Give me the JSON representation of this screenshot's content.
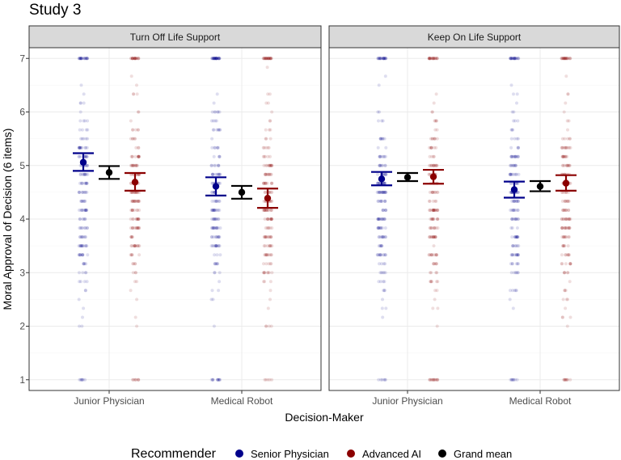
{
  "chart_data": {
    "type": "scatter",
    "title": "Study 3",
    "xlabel": "Decision-Maker",
    "ylabel": "Moral Approval of Decision (6 items)",
    "ylim": [
      0.8,
      7.2
    ],
    "yticks": [
      "1",
      "2",
      "3",
      "4",
      "5",
      "6",
      "7"
    ],
    "categories": [
      "Junior Physician",
      "Medical Robot"
    ],
    "grid": true,
    "legend": {
      "title": "Recommender",
      "position": "bottom",
      "entries": [
        {
          "name": "Senior Physician",
          "color": "#00008b"
        },
        {
          "name": "Advanced AI",
          "color": "#8b0000"
        },
        {
          "name": "Grand mean",
          "color": "#000000"
        }
      ]
    },
    "panels": [
      {
        "name": "Turn Off Life Support",
        "means": [
          {
            "category": "Junior Physician",
            "series": "Senior Physician",
            "mean": 5.06,
            "lower": 4.9,
            "upper": 5.23
          },
          {
            "category": "Junior Physician",
            "series": "Grand mean",
            "mean": 4.87,
            "lower": 4.75,
            "upper": 4.99
          },
          {
            "category": "Junior Physician",
            "series": "Advanced AI",
            "mean": 4.69,
            "lower": 4.53,
            "upper": 4.86
          },
          {
            "category": "Medical Robot",
            "series": "Senior Physician",
            "mean": 4.61,
            "lower": 4.44,
            "upper": 4.78
          },
          {
            "category": "Medical Robot",
            "series": "Grand mean",
            "mean": 4.5,
            "lower": 4.38,
            "upper": 4.62
          },
          {
            "category": "Medical Robot",
            "series": "Advanced AI",
            "mean": 4.39,
            "lower": 4.21,
            "upper": 4.57
          }
        ]
      },
      {
        "name": "Keep On Life Support",
        "means": [
          {
            "category": "Junior Physician",
            "series": "Senior Physician",
            "mean": 4.75,
            "lower": 4.63,
            "upper": 4.88
          },
          {
            "category": "Junior Physician",
            "series": "Grand mean",
            "mean": 4.78,
            "lower": 4.71,
            "upper": 4.86
          },
          {
            "category": "Junior Physician",
            "series": "Advanced AI",
            "mean": 4.79,
            "lower": 4.66,
            "upper": 4.92
          },
          {
            "category": "Medical Robot",
            "series": "Senior Physician",
            "mean": 4.55,
            "lower": 4.4,
            "upper": 4.7
          },
          {
            "category": "Medical Robot",
            "series": "Grand mean",
            "mean": 4.61,
            "lower": 4.52,
            "upper": 4.71
          },
          {
            "category": "Medical Robot",
            "series": "Advanced AI",
            "mean": 4.67,
            "lower": 4.53,
            "upper": 4.82
          }
        ]
      }
    ]
  }
}
